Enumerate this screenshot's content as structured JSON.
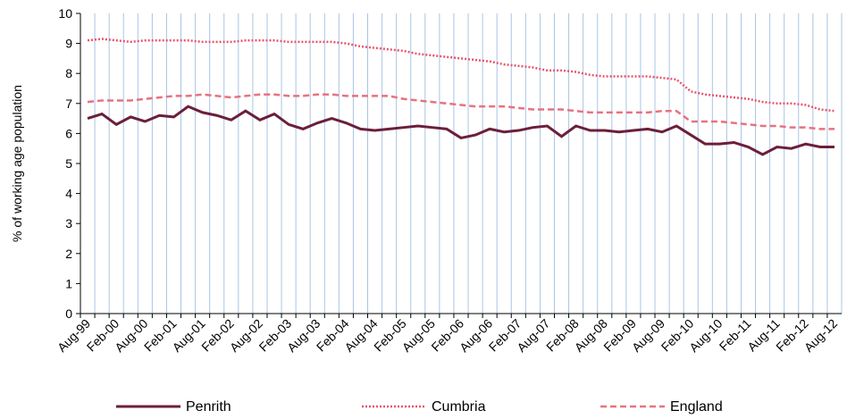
{
  "chart_data": {
    "type": "line",
    "y_label": "% of working age population",
    "categories": [
      "Aug-99",
      null,
      "Feb-00",
      null,
      "Aug-00",
      null,
      "Feb-01",
      null,
      "Aug-01",
      null,
      "Feb-02",
      null,
      "Aug-02",
      null,
      "Feb-03",
      null,
      "Aug-03",
      null,
      "Feb-04",
      null,
      "Aug-04",
      null,
      "Feb-05",
      null,
      "Aug-05",
      null,
      "Feb-06",
      null,
      "Aug-06",
      null,
      "Feb-07",
      null,
      "Aug-07",
      null,
      "Feb-08",
      null,
      "Aug-08",
      null,
      "Feb-09",
      null,
      "Aug-09",
      null,
      "Feb-10",
      null,
      "Aug-10",
      null,
      "Feb-11",
      null,
      "Aug-11",
      null,
      "Feb-12",
      null,
      "Aug-12"
    ],
    "series": [
      {
        "name": "Penrith",
        "color": "#6b1f3a",
        "dash": "solid",
        "values": [
          6.5,
          6.65,
          6.3,
          6.55,
          6.4,
          6.6,
          6.55,
          6.9,
          6.7,
          6.6,
          6.45,
          6.75,
          6.45,
          6.65,
          6.3,
          6.15,
          6.35,
          6.5,
          6.35,
          6.15,
          6.1,
          6.15,
          6.2,
          6.25,
          6.2,
          6.15,
          5.85,
          5.95,
          6.15,
          6.05,
          6.1,
          6.2,
          6.25,
          5.9,
          6.25,
          6.1,
          6.1,
          6.05,
          6.1,
          6.15,
          6.05,
          6.25,
          5.95,
          5.65,
          5.65,
          5.7,
          5.55,
          5.3,
          5.55,
          5.5,
          5.65,
          5.55,
          5.55
        ]
      },
      {
        "name": "Cumbria",
        "color": "#e8566c",
        "dash": "dotted",
        "values": [
          9.1,
          9.15,
          9.1,
          9.05,
          9.1,
          9.1,
          9.1,
          9.1,
          9.05,
          9.05,
          9.05,
          9.1,
          9.1,
          9.1,
          9.05,
          9.05,
          9.05,
          9.05,
          9.0,
          8.9,
          8.85,
          8.8,
          8.75,
          8.65,
          8.6,
          8.55,
          8.5,
          8.45,
          8.4,
          8.3,
          8.25,
          8.2,
          8.1,
          8.1,
          8.05,
          7.95,
          7.9,
          7.9,
          7.9,
          7.9,
          7.85,
          7.8,
          7.4,
          7.3,
          7.25,
          7.2,
          7.15,
          7.05,
          7.0,
          7.0,
          6.95,
          6.8,
          6.75
        ]
      },
      {
        "name": "England",
        "color": "#e8727e",
        "dash": "dashed",
        "values": [
          7.05,
          7.1,
          7.1,
          7.1,
          7.15,
          7.2,
          7.25,
          7.25,
          7.3,
          7.25,
          7.2,
          7.25,
          7.3,
          7.3,
          7.25,
          7.25,
          7.3,
          7.3,
          7.25,
          7.25,
          7.25,
          7.25,
          7.15,
          7.1,
          7.05,
          7.0,
          6.95,
          6.9,
          6.9,
          6.9,
          6.85,
          6.8,
          6.8,
          6.8,
          6.75,
          6.7,
          6.7,
          6.7,
          6.7,
          6.7,
          6.75,
          6.75,
          6.4,
          6.4,
          6.4,
          6.35,
          6.3,
          6.25,
          6.25,
          6.2,
          6.2,
          6.15,
          6.15
        ]
      }
    ],
    "ylim": [
      0,
      10
    ],
    "yticks": [
      0,
      1,
      2,
      3,
      4,
      5,
      6,
      7,
      8,
      9,
      10
    ],
    "x_grid": true,
    "grid_color": "#a9c5e6",
    "legend": "bottom"
  }
}
